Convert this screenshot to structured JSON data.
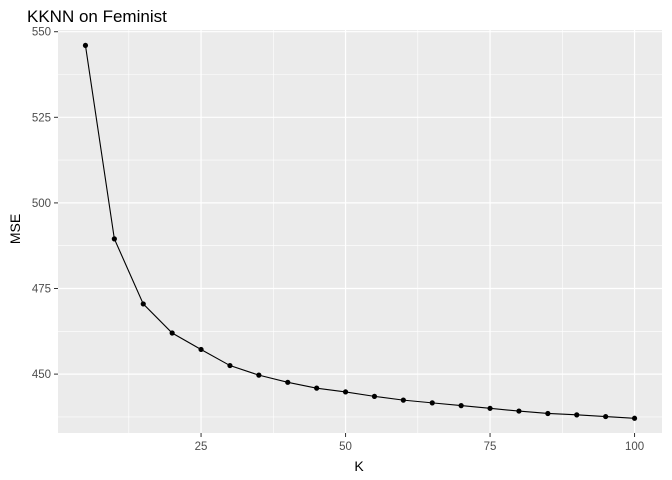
{
  "chart_data": {
    "type": "line",
    "title": "KKNN on Feminist",
    "xlabel": "K",
    "ylabel": "MSE",
    "x": [
      5,
      10,
      15,
      20,
      25,
      30,
      35,
      40,
      45,
      50,
      55,
      60,
      65,
      70,
      75,
      80,
      85,
      90,
      95,
      100
    ],
    "series": [
      {
        "values": [
          546.0,
          489.5,
          470.5,
          462.0,
          457.2,
          452.5,
          449.7,
          447.6,
          445.9,
          444.8,
          443.5,
          442.4,
          441.6,
          440.8,
          440.0,
          439.2,
          438.5,
          438.1,
          437.6,
          437.1
        ],
        "markers": true
      }
    ],
    "xlim": [
      0.25,
      104.75
    ],
    "ylim": [
      432.8,
      550.5
    ],
    "xticks": [
      25,
      50,
      75,
      100
    ],
    "yticks": [
      450,
      475,
      500,
      525,
      550
    ],
    "grid": true,
    "legend": "none",
    "colors": {
      "panel_background": "#ebebeb",
      "grid_major": "#ffffff",
      "line": "#000000",
      "point": "#000000"
    }
  }
}
